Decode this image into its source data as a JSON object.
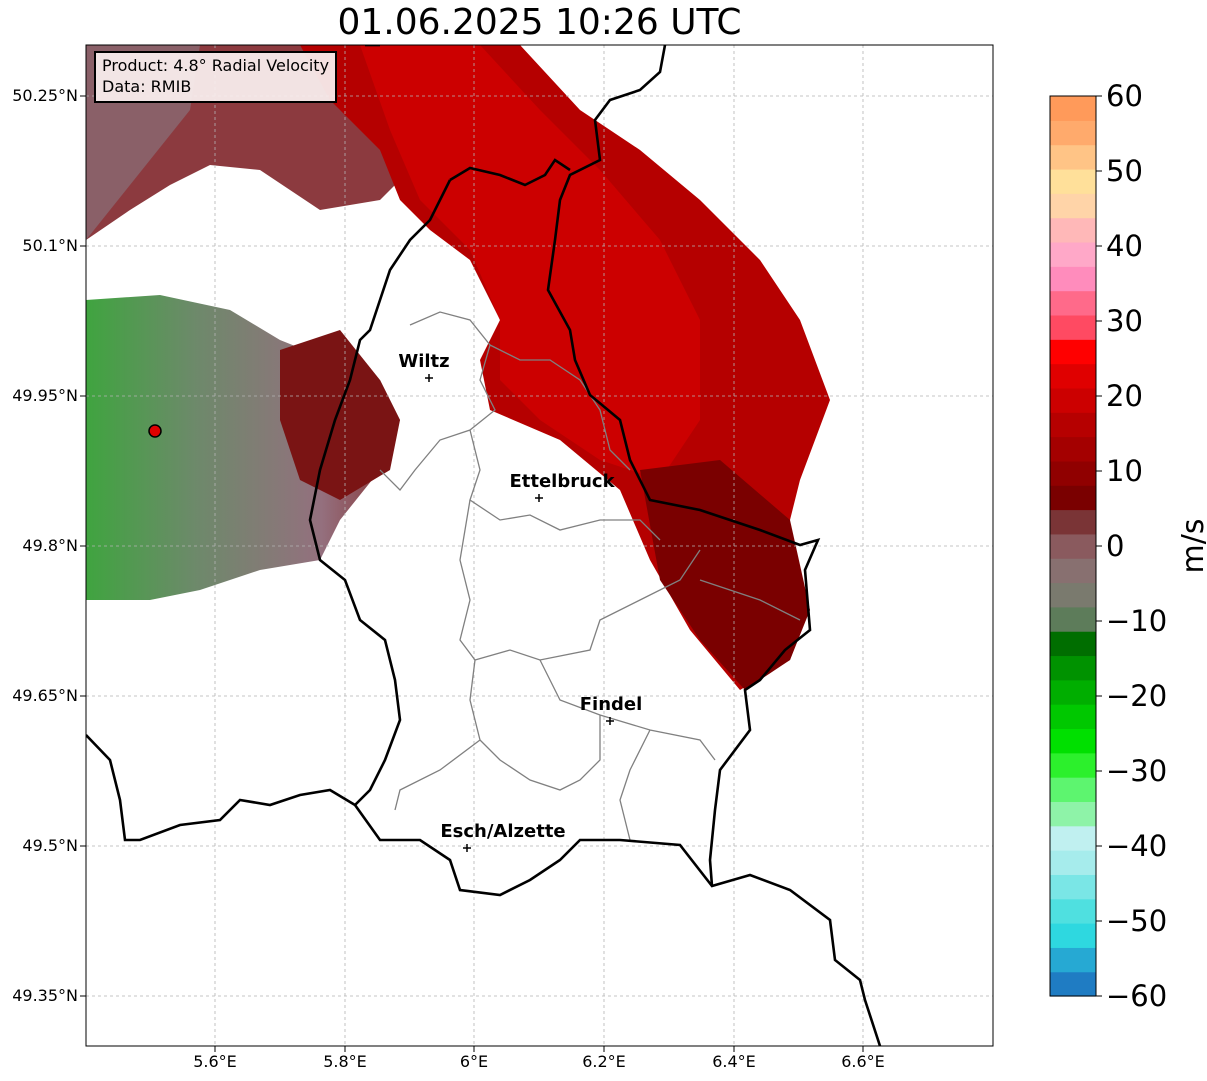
{
  "title": "01.06.2025 10:26 UTC",
  "infobox": {
    "product": "Product: 4.8° Radial Velocity",
    "data": "Data: RMIB"
  },
  "map": {
    "y_ticks": [
      "50.25°N",
      "50.1°N",
      "49.95°N",
      "49.8°N",
      "49.65°N",
      "49.5°N",
      "49.35°N"
    ],
    "x_ticks": [
      "5.6°E",
      "5.8°E",
      "6°E",
      "6.2°E",
      "6.4°E",
      "6.6°E"
    ],
    "lon_range": [
      5.4,
      6.8
    ],
    "lat_range": [
      49.3,
      50.3
    ],
    "grid": true,
    "radar_site": {
      "lon": 5.5,
      "lat": 49.915
    },
    "cities": [
      {
        "name": "Wiltz",
        "lon": 5.93,
        "lat": 49.966
      },
      {
        "name": "Ettelbruck",
        "lon": 6.1,
        "lat": 49.847
      },
      {
        "name": "Findel",
        "lon": 6.21,
        "lat": 49.627
      },
      {
        "name": "Esch/Alzette",
        "lon": 5.99,
        "lat": 49.5
      }
    ]
  },
  "colorbar": {
    "unit": "m/s",
    "min": -60,
    "max": 60,
    "tick_labels": [
      "60",
      "50",
      "40",
      "30",
      "20",
      "10",
      "0",
      "−10",
      "−20",
      "−30",
      "−40",
      "−50",
      "−60"
    ],
    "tick_values": [
      60,
      50,
      40,
      30,
      20,
      10,
      0,
      -10,
      -20,
      -30,
      -40,
      -50,
      -60
    ],
    "colors": [
      "#1f7cc3",
      "#26a9d3",
      "#2ed8e0",
      "#4fe0e0",
      "#7ae6e6",
      "#a6ecec",
      "#c0f0f0",
      "#8ef3a8",
      "#5df56f",
      "#2cf02c",
      "#00e000",
      "#00c800",
      "#00ae00",
      "#009200",
      "#006e00",
      "#5d7c5a",
      "#7a7a6e",
      "#887070",
      "#8a5a5e",
      "#7a3436",
      "#7a0000",
      "#900000",
      "#a40000",
      "#b60000",
      "#cc0000",
      "#e00000",
      "#ff0000",
      "#ff4a62",
      "#ff6a8a",
      "#ff8cbc",
      "#ffa8c8",
      "#ffb8b8",
      "#ffd4a8",
      "#ffe09a",
      "#ffc486",
      "#ffaa6c",
      "#ff9a5a"
    ]
  }
}
